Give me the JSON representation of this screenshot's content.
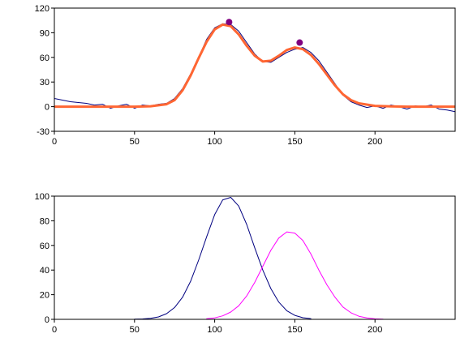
{
  "chart_data": [
    {
      "type": "line",
      "title": "",
      "xlabel": "",
      "ylabel": "",
      "xlim": [
        0,
        250
      ],
      "ylim": [
        -30,
        120
      ],
      "xticks": [
        0,
        50,
        100,
        150,
        200
      ],
      "yticks": [
        -30,
        0,
        30,
        60,
        90,
        120
      ],
      "grid": false,
      "series": [
        {
          "color": "#000080",
          "x": [
            0,
            5,
            10,
            15,
            20,
            25,
            30,
            35,
            40,
            45,
            50,
            55,
            60,
            65,
            70,
            75,
            80,
            85,
            90,
            95,
            100,
            105,
            110,
            115,
            120,
            125,
            130,
            135,
            140,
            145,
            150,
            155,
            160,
            165,
            170,
            175,
            180,
            185,
            190,
            195,
            200,
            205,
            210,
            215,
            220,
            225,
            230,
            235,
            240,
            245,
            250
          ],
          "y": [
            10,
            8,
            6,
            5,
            4,
            2,
            3,
            -2,
            1,
            3,
            -2,
            2,
            1,
            3,
            4,
            10,
            22,
            40,
            60,
            82,
            96,
            101,
            100,
            92,
            78,
            64,
            55,
            54,
            60,
            66,
            70,
            72,
            66,
            56,
            42,
            28,
            14,
            6,
            2,
            -1,
            1,
            -2,
            2,
            0,
            -3,
            1,
            0,
            2,
            -3,
            -4,
            -6
          ]
        },
        {
          "color": "#ff6633",
          "x": [
            0,
            10,
            20,
            30,
            40,
            50,
            60,
            70,
            75,
            80,
            85,
            90,
            95,
            100,
            105,
            110,
            115,
            120,
            125,
            130,
            135,
            140,
            145,
            150,
            155,
            160,
            165,
            170,
            175,
            180,
            185,
            190,
            200,
            210,
            220,
            230,
            240,
            250
          ],
          "y": [
            0,
            0,
            0,
            0,
            0,
            0,
            0.5,
            3,
            8,
            20,
            38,
            59,
            79,
            94,
            100,
            98,
            88,
            74,
            62,
            55,
            56,
            62,
            69,
            72,
            70,
            63,
            52,
            39,
            26,
            15,
            8,
            4,
            1,
            0.3,
            0,
            0,
            0,
            0
          ]
        }
      ],
      "markers": {
        "color": "#800080",
        "x": [
          109,
          153
        ],
        "y": [
          103,
          78
        ]
      }
    },
    {
      "type": "line",
      "title": "",
      "xlabel": "",
      "ylabel": "",
      "xlim": [
        0,
        250
      ],
      "ylim": [
        0,
        100
      ],
      "xticks": [
        0,
        50,
        100,
        150,
        200
      ],
      "yticks": [
        0,
        20,
        40,
        60,
        80,
        100
      ],
      "grid": false,
      "series": [
        {
          "color": "#000080",
          "x": [
            50,
            55,
            60,
            65,
            70,
            75,
            80,
            85,
            90,
            95,
            100,
            105,
            110,
            115,
            120,
            125,
            130,
            135,
            140,
            145,
            150,
            155,
            160
          ],
          "y": [
            0.1,
            0.3,
            0.8,
            2,
            4.6,
            9.6,
            18,
            31,
            48,
            67,
            85,
            97,
            99,
            92,
            77,
            58,
            40,
            25,
            14,
            7,
            3.2,
            1.3,
            0.5
          ]
        },
        {
          "color": "#ff00ff",
          "x": [
            95,
            100,
            105,
            110,
            115,
            120,
            125,
            130,
            135,
            140,
            145,
            150,
            155,
            160,
            165,
            170,
            175,
            180,
            185,
            190,
            195,
            200,
            205
          ],
          "y": [
            0.5,
            1.2,
            2.8,
            5.9,
            11,
            19,
            30,
            43,
            56,
            66,
            71,
            70,
            64,
            53,
            40,
            28,
            18,
            10,
            5.3,
            2.5,
            1.1,
            0.4,
            0.15
          ]
        }
      ]
    }
  ]
}
